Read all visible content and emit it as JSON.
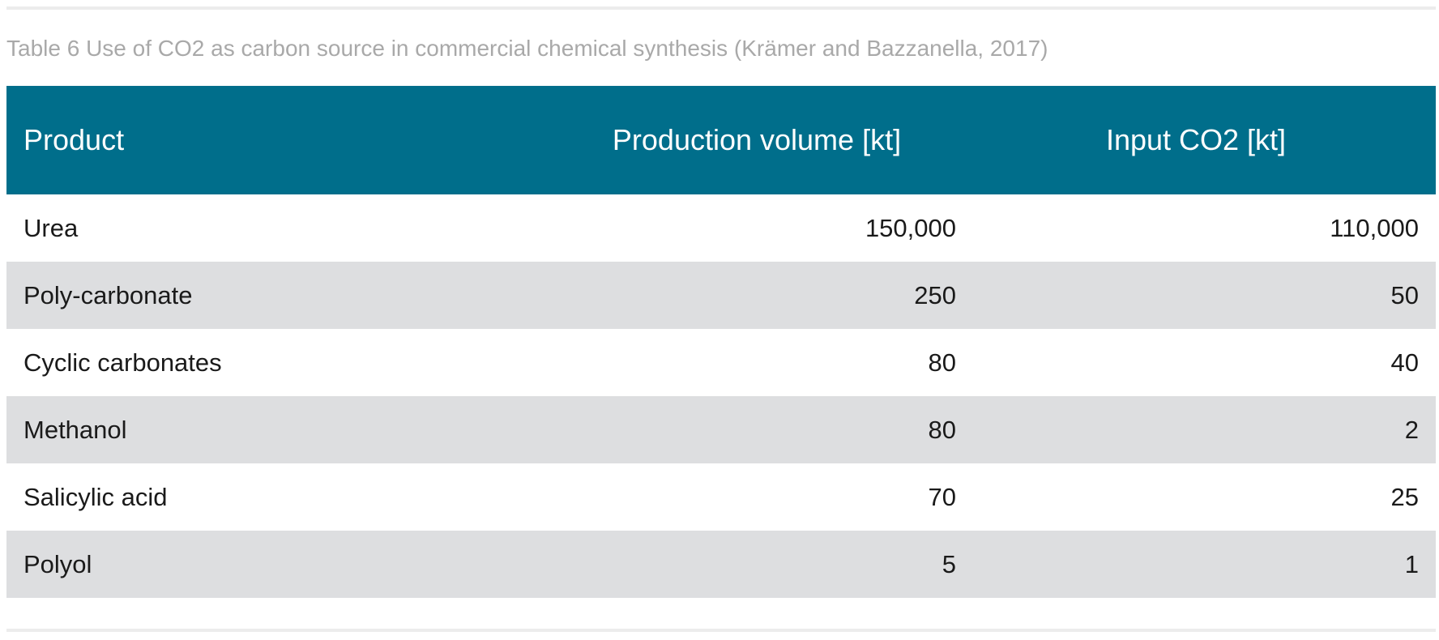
{
  "caption": "Table 6 Use of CO2 as carbon source in commercial chemical synthesis (Krämer and Bazzanella, 2017)",
  "table": {
    "headers": [
      "Product",
      "Production volume [kt]",
      "Input CO2 [kt]"
    ],
    "rows": [
      [
        "Urea",
        "150,000",
        "110,000"
      ],
      [
        "Poly-carbonate",
        "250",
        "50"
      ],
      [
        "Cyclic carbonates",
        "80",
        "40"
      ],
      [
        "Methanol",
        "80",
        "2"
      ],
      [
        "Salicylic acid",
        "70",
        "25"
      ],
      [
        "Polyol",
        "5",
        "1"
      ]
    ]
  },
  "colors": {
    "header_background": "#006e8b",
    "header_text": "#ffffff",
    "stripe_row": "#dddee0",
    "caption_text": "#a9a9a9"
  }
}
